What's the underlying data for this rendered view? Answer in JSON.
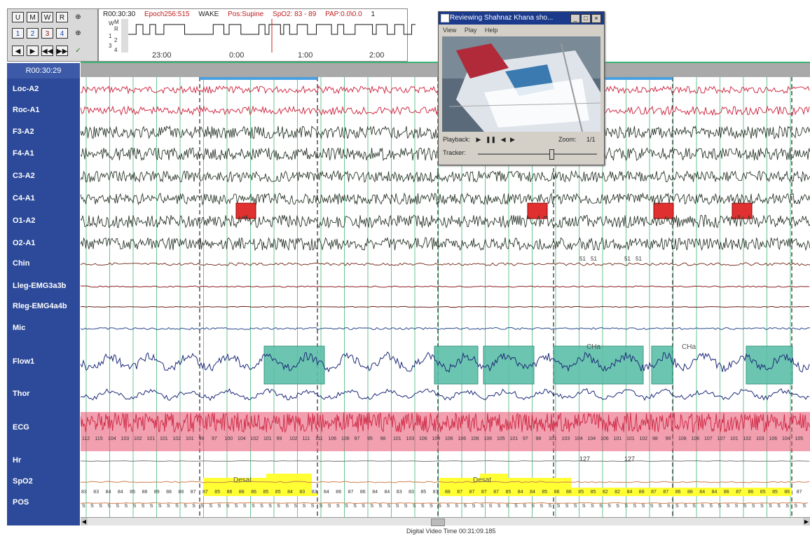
{
  "toolbar": {
    "row1": [
      "U",
      "M",
      "W",
      "R"
    ],
    "row2": [
      "1",
      "2",
      "3",
      "4"
    ],
    "row3": [
      "◀",
      "▶",
      "◀◀",
      "▶▶"
    ]
  },
  "hypnogram": {
    "epoch_time": "R00:30:30",
    "epoch": "Epoch256:515",
    "stage": "WAKE",
    "position": "Pos:Supine",
    "spo2": "SpO2: 83 - 89",
    "pap": "PAP:0.0\\0.0",
    "page_no": "1",
    "stage_labels": [
      "W",
      "M",
      "R",
      "1",
      "2",
      "3",
      "4"
    ],
    "time_labels": [
      "23:00",
      "0:00",
      "1:00",
      "2:00"
    ]
  },
  "header_time": "R00:30:29",
  "channels": [
    "Loc-A2",
    "Roc-A1",
    "F3-A2",
    "F4-A1",
    "C3-A2",
    "C4-A1",
    "O1-A2",
    "O2-A1",
    "Chin",
    "Lleg-EMG3a3b",
    "Rleg-EMG4a4b",
    "Mic",
    "Flow1",
    "Thor",
    "ECG",
    "Hr",
    "SpO2",
    "POS"
  ],
  "annotations": {
    "desat_label": "Desat",
    "cha_label": "CHa",
    "hr_value": "127",
    "pos_letter": "S",
    "chin_values": [
      "51",
      "51",
      "51",
      "51"
    ],
    "hr_row_values": [
      "112",
      "115",
      "104",
      "103",
      "102",
      "101",
      "101",
      "102",
      "101",
      "99",
      "97",
      "100",
      "104",
      "102",
      "101",
      "99",
      "102",
      "111",
      "111",
      "106",
      "106",
      "97",
      "95",
      "98",
      "101",
      "103",
      "106",
      "104",
      "106",
      "106",
      "106",
      "106",
      "105",
      "101",
      "97",
      "98",
      "101",
      "103",
      "104",
      "104",
      "106",
      "101",
      "101",
      "102",
      "98",
      "99",
      "108",
      "106",
      "107",
      "107",
      "101",
      "102",
      "103",
      "106",
      "104",
      "105"
    ],
    "spo2_row_values": [
      "83",
      "83",
      "84",
      "84",
      "86",
      "88",
      "89",
      "88",
      "88",
      "87",
      "87",
      "85",
      "86",
      "88",
      "86",
      "85",
      "85",
      "84",
      "83",
      "83",
      "84",
      "86",
      "87",
      "86",
      "84",
      "84",
      "83",
      "83",
      "85",
      "87",
      "88",
      "87",
      "87",
      "87",
      "87",
      "85",
      "84",
      "84",
      "85",
      "86",
      "86",
      "85",
      "85",
      "82",
      "82",
      "84",
      "88",
      "87",
      "87",
      "86",
      "88",
      "84",
      "84",
      "86",
      "87",
      "86",
      "85",
      "85",
      "86",
      "87"
    ]
  },
  "video_window": {
    "title": "Reviewing Shahnaz Khana sho...",
    "menu": [
      "View",
      "Play",
      "Help"
    ],
    "playback_label": "Playback:",
    "zoom_label": "Zoom:",
    "zoom_value": "1/1",
    "tracker_label": "Tracker:",
    "tracker_position": 0.6
  },
  "video_time": "Digital Video Time 00:31:09.185",
  "colors": {
    "panel_blue": "#2c4a99",
    "eog_red": "#d0304a",
    "eeg_dark": "#2e3a2e",
    "flow_navy": "#1e2a78",
    "event_teal": "#5cbfa8",
    "event_red": "#e03030",
    "desat_yellow": "#ffff33",
    "ecg_pink": "#e85070",
    "grid_green": "#3cb371"
  }
}
